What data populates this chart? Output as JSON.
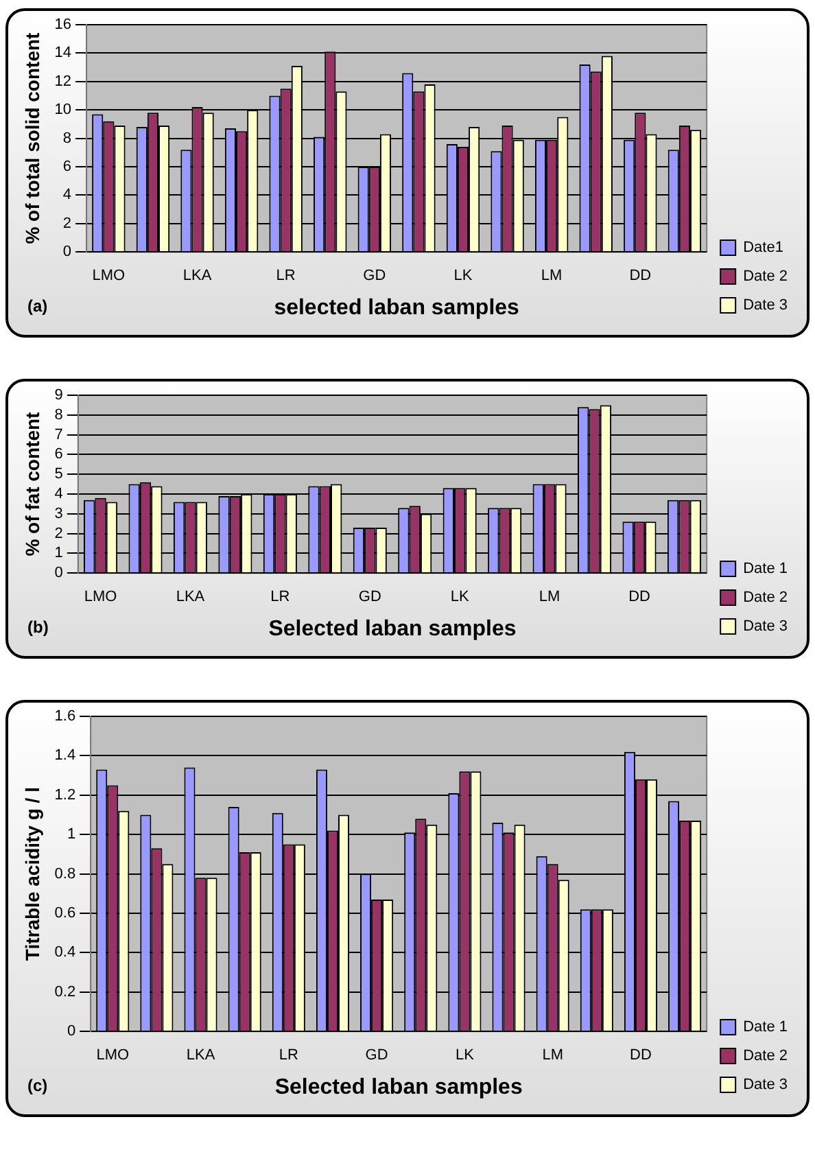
{
  "chart_data": [
    {
      "type": "bar",
      "ylabel": "% of total solid content",
      "xlabel": "selected laban samples",
      "annotations": [
        "(a)"
      ],
      "categories": [
        "LMO",
        null,
        "LKA",
        null,
        "LR",
        null,
        "GD",
        null,
        "LK",
        null,
        "LM",
        null,
        "DD",
        null
      ],
      "series": [
        {
          "name": "Date1",
          "color": "#9999ff",
          "values": [
            9.7,
            8.8,
            7.2,
            8.7,
            11.0,
            8.1,
            6.0,
            12.6,
            7.6,
            7.1,
            7.9,
            13.2,
            7.9,
            7.2
          ]
        },
        {
          "name": "Date 2",
          "color": "#993366",
          "values": [
            9.2,
            9.8,
            10.2,
            8.5,
            11.5,
            14.1,
            6.0,
            11.3,
            7.4,
            8.9,
            7.9,
            12.7,
            9.8,
            8.9
          ]
        },
        {
          "name": "Date 3",
          "color": "#ffffcc",
          "values": [
            8.9,
            8.9,
            9.8,
            10.0,
            13.1,
            11.3,
            8.3,
            11.8,
            8.8,
            7.9,
            9.5,
            13.8,
            8.3,
            8.6
          ]
        }
      ],
      "ylim": [
        0,
        16
      ],
      "yticks": [
        0,
        2,
        4,
        6,
        8,
        10,
        12,
        14,
        16
      ],
      "grid": "y",
      "legend": "bottom right"
    },
    {
      "type": "bar",
      "ylabel": "% of fat content",
      "xlabel": "Selected laban samples",
      "annotations": [
        "(b)"
      ],
      "categories": [
        "LMO",
        null,
        "LKA",
        null,
        "LR",
        null,
        "GD",
        null,
        "LK",
        null,
        "LM",
        null,
        "DD",
        null
      ],
      "series": [
        {
          "name": "Date 1",
          "color": "#9999ff",
          "values": [
            3.7,
            4.5,
            3.6,
            3.9,
            4.0,
            4.4,
            2.3,
            3.3,
            4.3,
            3.3,
            4.5,
            8.4,
            2.6,
            3.7
          ]
        },
        {
          "name": "Date 2",
          "color": "#993366",
          "values": [
            3.8,
            4.6,
            3.6,
            3.9,
            4.0,
            4.4,
            2.3,
            3.4,
            4.3,
            3.3,
            4.5,
            8.3,
            2.6,
            3.7
          ]
        },
        {
          "name": "Date 3",
          "color": "#ffffcc",
          "values": [
            3.6,
            4.4,
            3.6,
            4.0,
            4.0,
            4.5,
            2.3,
            3.0,
            4.3,
            3.3,
            4.5,
            8.5,
            2.6,
            3.7
          ]
        }
      ],
      "ylim": [
        0,
        9
      ],
      "yticks": [
        0,
        1,
        2,
        3,
        4,
        5,
        6,
        7,
        8,
        9
      ],
      "grid": "y",
      "legend": "bottom right"
    },
    {
      "type": "bar",
      "ylabel": "Titrable acidity g / l",
      "xlabel": "Selected laban samples",
      "annotations": [
        "(c)"
      ],
      "categories": [
        "LMO",
        null,
        "LKA",
        null,
        "LR",
        null,
        "GD",
        null,
        "LK",
        null,
        "LM",
        null,
        "DD",
        null
      ],
      "series": [
        {
          "name": "Date 1",
          "color": "#9999ff",
          "values": [
            1.33,
            1.1,
            1.34,
            1.14,
            1.11,
            1.33,
            0.8,
            1.01,
            1.21,
            1.06,
            0.89,
            0.62,
            1.42,
            1.17
          ]
        },
        {
          "name": "Date 2",
          "color": "#993366",
          "values": [
            1.25,
            0.93,
            0.78,
            0.91,
            0.95,
            1.02,
            0.67,
            1.08,
            1.32,
            1.01,
            0.85,
            0.62,
            1.28,
            1.07
          ]
        },
        {
          "name": "Date 3",
          "color": "#ffffcc",
          "values": [
            1.12,
            0.85,
            0.78,
            0.91,
            0.95,
            1.1,
            0.67,
            1.05,
            1.32,
            1.05,
            0.77,
            0.62,
            1.28,
            1.07
          ]
        }
      ],
      "ylim": [
        0,
        1.6
      ],
      "yticks": [
        0,
        0.2,
        0.4,
        0.6,
        0.8,
        1,
        1.2,
        1.4,
        1.6
      ],
      "grid": "y",
      "legend": "bottom right"
    }
  ]
}
